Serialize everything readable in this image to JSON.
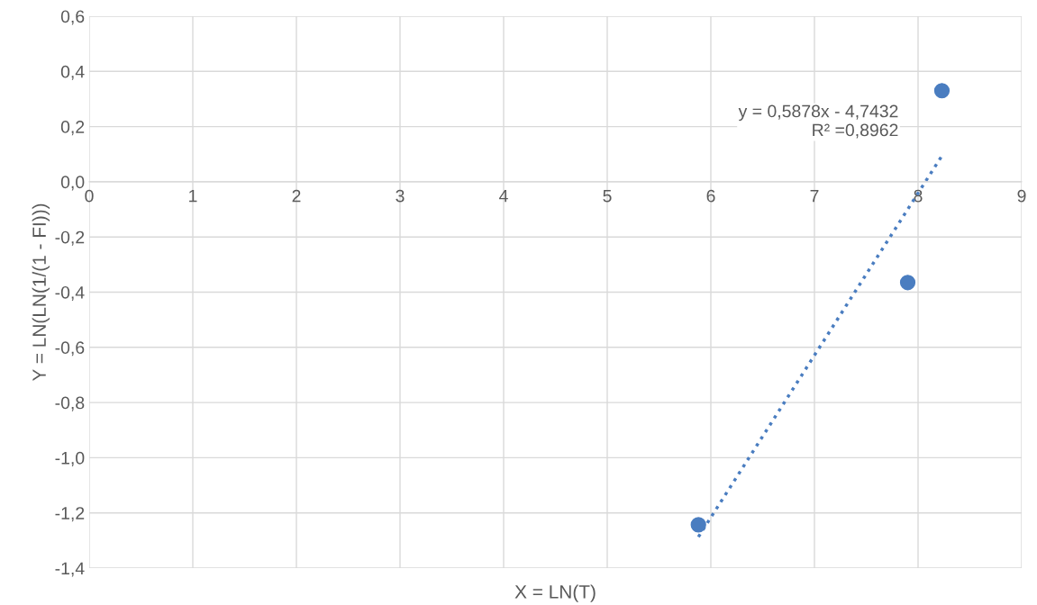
{
  "chart_data": {
    "type": "scatter",
    "xlabel": "X = LN(T)",
    "ylabel": "Y = LN(LN(1/(1 - FI)))",
    "series": [
      {
        "color": "#4a7dc0",
        "marker": "circle",
        "x": [
          5.88,
          7.9,
          8.23
        ],
        "values": [
          -1.243,
          -0.365,
          0.33
        ]
      },
      {
        "type": "line",
        "color": "#4a7dc0",
        "line_style": "dotted",
        "marker": "none",
        "x": [
          5.88,
          8.23
        ],
        "values": [
          -1.287,
          0.094
        ]
      }
    ],
    "annotations": [
      "y = 0,5878x - 4,7432\nR² =0,8962"
    ],
    "xlim": [
      0,
      9
    ],
    "xticks": [
      0,
      1,
      2,
      3,
      4,
      5,
      6,
      7,
      8,
      9
    ],
    "ylim": [
      -1.4,
      0.6
    ],
    "yticks": [
      {
        "value": -1.4,
        "label": "-1,4"
      },
      {
        "value": -1.2,
        "label": "-1,2"
      },
      {
        "value": -1.0,
        "label": "-1,0"
      },
      {
        "value": -0.8,
        "label": "-0,8"
      },
      {
        "value": -0.6,
        "label": "-0,6"
      },
      {
        "value": -0.4,
        "label": "-0,4"
      },
      {
        "value": -0.2,
        "label": "-0,2"
      },
      {
        "value": 0.0,
        "label": "0,0"
      },
      {
        "value": 0.2,
        "label": "0,2"
      },
      {
        "value": 0.4,
        "label": "0,4"
      },
      {
        "value": 0.6,
        "label": "0,6"
      }
    ],
    "grid": true
  }
}
